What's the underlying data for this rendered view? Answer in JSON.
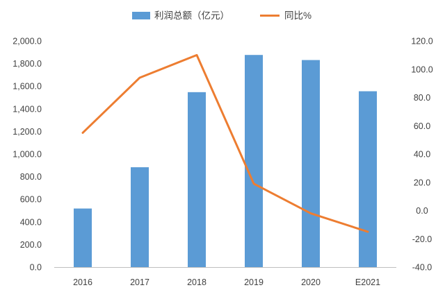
{
  "chart_data": {
    "type": "bar",
    "categories": [
      "2016",
      "2017",
      "2018",
      "2019",
      "2020",
      "E2021"
    ],
    "series": [
      {
        "name": "利润总额（亿元）",
        "type": "bar",
        "axis": "left",
        "color": "#5B9BD5",
        "values": [
          518,
          883,
          1547,
          1876,
          1831,
          1555
        ]
      },
      {
        "name": "同比%",
        "type": "line",
        "axis": "right",
        "color": "#ED7D31",
        "values": [
          55.0,
          94.0,
          110.0,
          19.0,
          -2.0,
          -15.0
        ]
      }
    ],
    "y_left": {
      "range": [
        0,
        2000
      ],
      "ticks": [
        "0.0",
        "200.0",
        "400.0",
        "600.0",
        "800.0",
        "1,000.0",
        "1,200.0",
        "1,400.0",
        "1,600.0",
        "1,800.0",
        "2,000.0"
      ]
    },
    "y_right": {
      "range": [
        -40,
        120
      ],
      "ticks": [
        "-40.0",
        "-20.0",
        "0.0",
        "20.0",
        "40.0",
        "60.0",
        "80.0",
        "100.0",
        "120.0"
      ]
    },
    "legend_position": "top",
    "grid": false
  }
}
